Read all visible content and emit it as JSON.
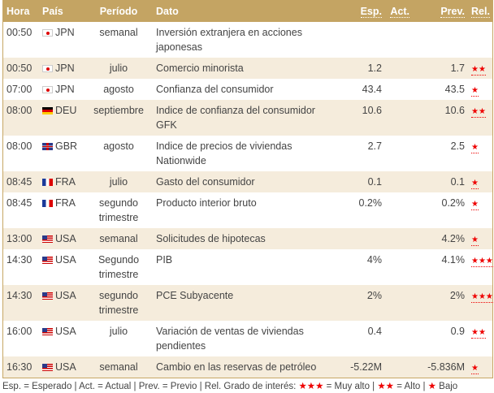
{
  "header": {
    "hora": "Hora",
    "pais": "País",
    "periodo": "Período",
    "dato": "Dato",
    "esp": "Esp.",
    "act": "Act.",
    "prev": "Prev.",
    "rel": "Rel."
  },
  "rows": [
    {
      "hora": "00:50",
      "flag": "jpn",
      "pais": "JPN",
      "periodo": "semanal",
      "dato": "Inversión extranjera en acciones japonesas",
      "esp": "",
      "act": "",
      "prev": "",
      "rel": ""
    },
    {
      "hora": "00:50",
      "flag": "jpn",
      "pais": "JPN",
      "periodo": "julio",
      "dato": "Comercio minorista",
      "esp": "1.2",
      "act": "",
      "prev": "1.7",
      "rel": "★★"
    },
    {
      "hora": "07:00",
      "flag": "jpn",
      "pais": "JPN",
      "periodo": "agosto",
      "dato": "Confianza del consumidor",
      "esp": "43.4",
      "act": "",
      "prev": "43.5",
      "rel": "★"
    },
    {
      "hora": "08:00",
      "flag": "deu",
      "pais": "DEU",
      "periodo": "septiembre",
      "dato": "Indice de confianza del consumidor GFK",
      "esp": "10.6",
      "act": "",
      "prev": "10.6",
      "rel": "★★"
    },
    {
      "hora": "08:00",
      "flag": "gbr",
      "pais": "GBR",
      "periodo": "agosto",
      "dato": "Indice de precios de viviendas Nationwide",
      "esp": "2.7",
      "act": "",
      "prev": "2.5",
      "rel": "★"
    },
    {
      "hora": "08:45",
      "flag": "fra",
      "pais": "FRA",
      "periodo": "julio",
      "dato": "Gasto del consumidor",
      "esp": "0.1",
      "act": "",
      "prev": "0.1",
      "rel": "★"
    },
    {
      "hora": "08:45",
      "flag": "fra",
      "pais": "FRA",
      "periodo": "segundo trimestre",
      "dato": "Producto interior bruto",
      "esp": "0.2%",
      "act": "",
      "prev": "0.2%",
      "rel": "★"
    },
    {
      "hora": "13:00",
      "flag": "usa",
      "pais": "USA",
      "periodo": "semanal",
      "dato": "Solicitudes de hipotecas",
      "esp": "",
      "act": "",
      "prev": "4.2%",
      "rel": "★"
    },
    {
      "hora": "14:30",
      "flag": "usa",
      "pais": "USA",
      "periodo": "Segundo trimestre",
      "dato": "PIB",
      "esp": "4%",
      "act": "",
      "prev": "4.1%",
      "rel": "★★★"
    },
    {
      "hora": "14:30",
      "flag": "usa",
      "pais": "USA",
      "periodo": "segundo trimestre",
      "dato": "PCE Subyacente",
      "esp": "2%",
      "act": "",
      "prev": "2%",
      "rel": "★★★"
    },
    {
      "hora": "16:00",
      "flag": "usa",
      "pais": "USA",
      "periodo": "julio",
      "dato": "Variación de ventas de viviendas pendientes",
      "esp": "0.4",
      "act": "",
      "prev": "0.9",
      "rel": "★★"
    },
    {
      "hora": "16:30",
      "flag": "usa",
      "pais": "USA",
      "periodo": "semanal",
      "dato": "Cambio en las reservas de petróleo",
      "esp": "-5.22M",
      "act": "",
      "prev": "-5.836M",
      "rel": "★"
    }
  ],
  "footer": {
    "t1": "Esp. = Esperado | Act. = Actual | Prev. = Previo | Rel. Grado de interés: ",
    "s3": "★★★",
    "t2": " = Muy alto | ",
    "s2": "★★",
    "t3": " = Alto | ",
    "s1": "★",
    "t4": " Bajo"
  },
  "colors": {
    "header": "#c4a463",
    "alt_row": "#f5ecdc",
    "star": "#ee0000"
  }
}
